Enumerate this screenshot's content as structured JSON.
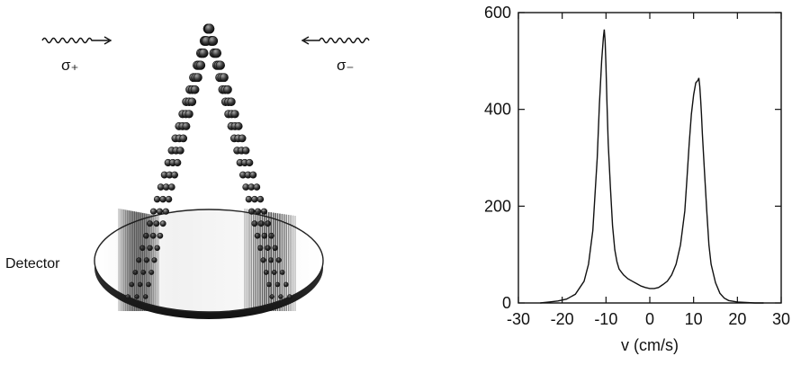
{
  "figure": {
    "left": {
      "beam_left_label": "σ₊",
      "beam_right_label": "σ₋",
      "detector_label": "Detector"
    },
    "right": {
      "x_axis_label": "v (cm/s)"
    }
  },
  "chart_data": {
    "type": "line",
    "title": "",
    "xlabel": "v (cm/s)",
    "ylabel": "",
    "xlim": [
      -30,
      30
    ],
    "ylim": [
      0,
      600
    ],
    "x_ticks": [
      -30,
      -20,
      -10,
      0,
      10,
      20,
      30
    ],
    "y_ticks": [
      0,
      200,
      400,
      600
    ],
    "grid": false,
    "series": [
      {
        "x": [
          -25,
          -23,
          -21,
          -19,
          -17,
          -15,
          -14,
          -13,
          -12,
          -11.5,
          -11,
          -10.6,
          -10.4,
          -10.2,
          -10,
          -9.8,
          -9.5,
          -9,
          -8.5,
          -8,
          -7.5,
          -7,
          -6,
          -5,
          -4,
          -3,
          -2,
          -1,
          0,
          1,
          2,
          3,
          4,
          5,
          6,
          7,
          8,
          8.5,
          9,
          9.5,
          10,
          10.5,
          11,
          11.2,
          11.4,
          11.6,
          11.8,
          12,
          12.5,
          13,
          13.5,
          14,
          15,
          16,
          17,
          18,
          20,
          22,
          24,
          26
        ],
        "y": [
          0,
          2,
          4,
          8,
          18,
          45,
          80,
          150,
          300,
          410,
          500,
          548,
          565,
          540,
          490,
          420,
          330,
          240,
          160,
          110,
          85,
          70,
          58,
          50,
          45,
          40,
          35,
          32,
          30,
          30,
          32,
          38,
          45,
          58,
          80,
          120,
          190,
          260,
          330,
          390,
          430,
          455,
          460,
          465,
          448,
          420,
          390,
          350,
          270,
          190,
          120,
          80,
          42,
          20,
          10,
          5,
          2,
          1,
          0,
          0
        ]
      }
    ]
  },
  "colors": {
    "ink": "#111111",
    "detector_fill": "#ffffff",
    "detector_rim": "#222222",
    "stream_dark": "#1a1a1a",
    "stream_light": "#9a9a9a"
  },
  "icons": [
    "wavy-arrow-right-icon",
    "wavy-arrow-left-icon",
    "atom-dot-icon"
  ]
}
